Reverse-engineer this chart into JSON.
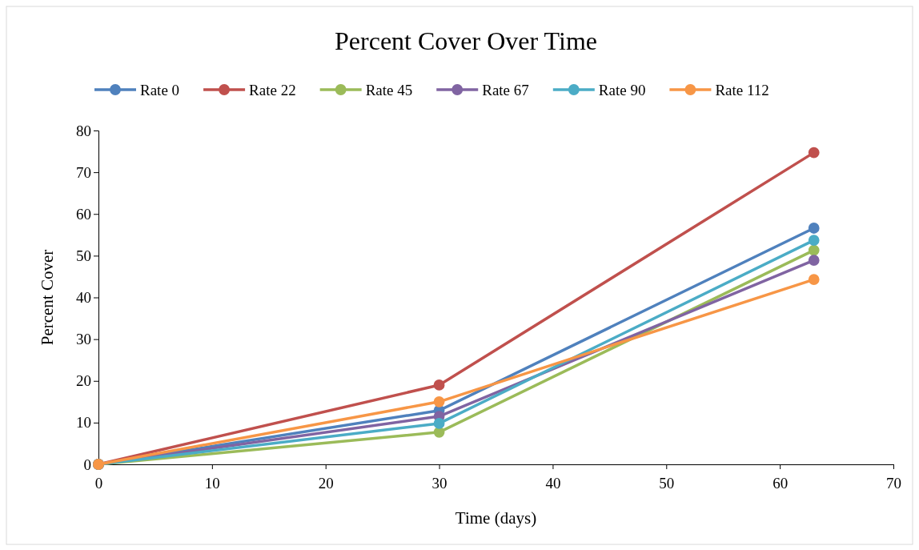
{
  "chart_data": {
    "type": "line",
    "title": "Percent Cover Over Time",
    "xlabel": "Time (days)",
    "ylabel": "Percent Cover",
    "x": [
      0,
      30,
      63
    ],
    "xlim": [
      0,
      70
    ],
    "xticks": [
      0,
      10,
      20,
      30,
      40,
      50,
      60,
      70
    ],
    "ylim": [
      0,
      80
    ],
    "yticks": [
      0,
      10,
      20,
      30,
      40,
      50,
      60,
      70,
      80
    ],
    "grid": false,
    "legend": "top",
    "marker": "circle",
    "line_style": "solid",
    "series": [
      {
        "name": "Rate 0",
        "color": "#4f81bd",
        "values": [
          0,
          12.9,
          56.6
        ]
      },
      {
        "name": "Rate 22",
        "color": "#c0504d",
        "values": [
          0,
          19,
          74.7
        ]
      },
      {
        "name": "Rate 45",
        "color": "#9bbb59",
        "values": [
          0,
          7.7,
          51.3
        ]
      },
      {
        "name": "Rate 67",
        "color": "#8064a2",
        "values": [
          0,
          11.5,
          48.9
        ]
      },
      {
        "name": "Rate 90",
        "color": "#4bacc6",
        "values": [
          0,
          9.8,
          53.7
        ]
      },
      {
        "name": "Rate 112",
        "color": "#f79646",
        "values": [
          0,
          15,
          44.3
        ]
      }
    ]
  }
}
